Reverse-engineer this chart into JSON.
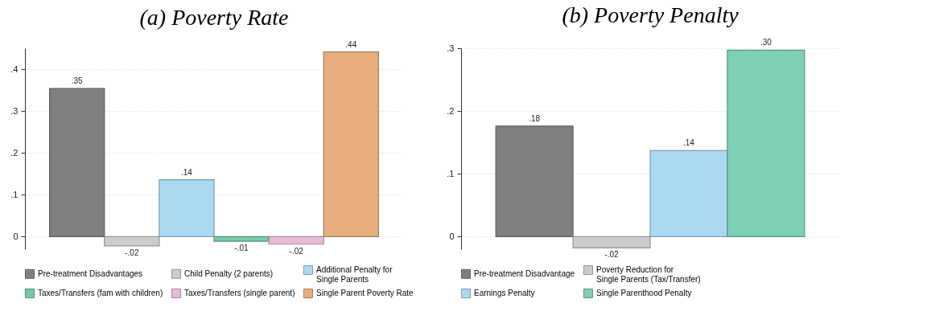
{
  "chart_data": [
    {
      "type": "bar",
      "title": "(a) Poverty Rate",
      "categories": [
        null,
        null,
        null,
        null,
        null,
        null
      ],
      "ylim": [
        -0.03,
        0.45
      ],
      "yticks": [
        0,
        {
          "value": 0.1,
          "label": ".1"
        },
        {
          "value": 0.2,
          "label": ".2"
        },
        {
          "value": 0.3,
          "label": ".3"
        },
        {
          "value": 0.4,
          "label": ".4"
        }
      ],
      "grid": "y",
      "legend": "bottom",
      "series": [
        {
          "name": "Pre-treatment Disadvantages",
          "color": "#808080",
          "values": [
            0.354,
            null,
            null,
            null,
            null,
            null
          ],
          "value_labels": [
            ".35",
            null,
            null,
            null,
            null,
            null
          ]
        },
        {
          "name": "Child Penalty (2 parents)",
          "color": "#cccccc",
          "values": [
            null,
            -0.022,
            null,
            null,
            null,
            null
          ],
          "value_labels": [
            null,
            "-.02",
            null,
            null,
            null,
            null
          ]
        },
        {
          "name": "Additional Penalty for Single Parents",
          "color": "#acd9f2",
          "values": [
            null,
            null,
            0.136,
            null,
            null,
            null
          ],
          "value_labels": [
            null,
            null,
            ".14",
            null,
            null,
            null
          ]
        },
        {
          "name": "Taxes/Transfers (fam with children)",
          "color": "#76caa8",
          "values": [
            null,
            null,
            null,
            -0.011,
            null,
            null
          ],
          "value_labels": [
            null,
            null,
            null,
            "-.01",
            null,
            null
          ]
        },
        {
          "name": "Taxes/Transfers (single parent)",
          "color": "#e6bcd6",
          "values": [
            null,
            null,
            null,
            null,
            -0.018,
            null
          ],
          "value_labels": [
            null,
            null,
            null,
            null,
            "-.02",
            null
          ]
        },
        {
          "name": "Single Parent Poverty Rate",
          "color": "#e8ae7e",
          "values": [
            null,
            null,
            null,
            null,
            null,
            0.441
          ],
          "value_labels": [
            null,
            null,
            null,
            null,
            null,
            ".44"
          ]
        }
      ]
    },
    {
      "type": "bar",
      "title": "(b) Poverty Penalty",
      "categories": [
        null,
        null,
        null,
        null
      ],
      "ylim": [
        -0.02,
        0.3
      ],
      "yticks": [
        0,
        {
          "value": 0.1,
          "label": ".1"
        },
        {
          "value": 0.2,
          "label": ".2"
        },
        {
          "value": 0.3,
          "label": ".3"
        }
      ],
      "grid": "y",
      "legend": "bottom",
      "series": [
        {
          "name": "Pre-treatment Disadvantage",
          "color": "#808080",
          "values": [
            0.176,
            null,
            null,
            null
          ],
          "value_labels": [
            ".18",
            null,
            null,
            null
          ]
        },
        {
          "name": "Poverty Reduction for Single Parents (Tax/Transfer)",
          "color": "#cccccc",
          "values": [
            null,
            -0.018,
            null,
            null
          ],
          "value_labels": [
            null,
            "-.02",
            null,
            null
          ]
        },
        {
          "name": "Earnings Penalty",
          "color": "#acd9f2",
          "values": [
            null,
            null,
            0.137,
            null
          ],
          "value_labels": [
            null,
            null,
            ".14",
            null
          ]
        },
        {
          "name": "Single Parenthood Penalty",
          "color": "#7fceb6",
          "values": [
            null,
            null,
            null,
            0.297
          ],
          "value_labels": [
            null,
            null,
            null,
            ".30"
          ]
        }
      ]
    }
  ]
}
